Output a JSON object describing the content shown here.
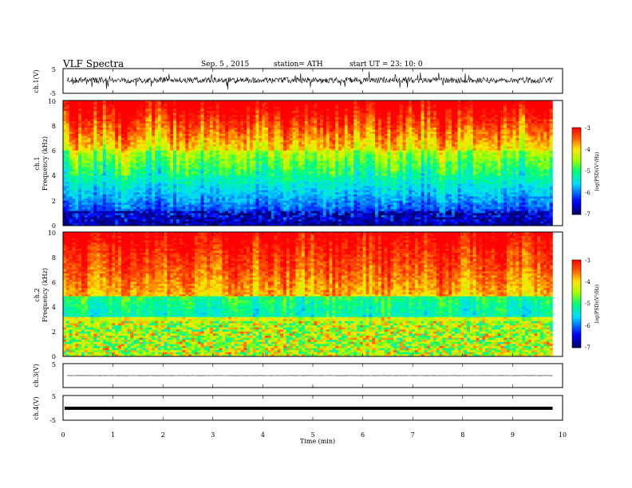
{
  "header": {
    "title": "VLF  Spectra",
    "date": "Sep. 5  , 2015",
    "station": "station= ATH",
    "start": "start  UT  =    23: 10: 0"
  },
  "chart_data": [
    {
      "type": "line",
      "panel": "ch1-waveform",
      "ylabel": "ch.1(V)",
      "ylim": [
        -5,
        5
      ],
      "y_ticks": [
        "5",
        "-5"
      ],
      "baseline": 0.3,
      "noise_amplitude": 1.2
    },
    {
      "type": "heatmap",
      "panel": "ch1-spectrogram",
      "ylabel_top": "ch.1",
      "ylabel": "Frequency (kHz)",
      "ylim": [
        0,
        10
      ],
      "y_ticks": [
        "0",
        "2",
        "4",
        "6",
        "8",
        "10"
      ],
      "colorbar_label": "log(PSD)(V²/Hz)",
      "colorbar_range": [
        -7,
        -3
      ],
      "colorbar_ticks": [
        "-3",
        "-4",
        "-5",
        "-6",
        "-7"
      ],
      "data_end_min": 9.8
    },
    {
      "type": "heatmap",
      "panel": "ch2-spectrogram",
      "ylabel_top": "ch.2",
      "ylabel": "Frequency (kHz)",
      "ylim": [
        0,
        10
      ],
      "y_ticks": [
        "0",
        "2",
        "4",
        "6",
        "8",
        "10"
      ],
      "colorbar_label": "log(PSD)(V²/Hz)",
      "colorbar_range": [
        -7,
        -3
      ],
      "colorbar_ticks": [
        "-3",
        "-4",
        "-5",
        "-6",
        "-7"
      ],
      "data_end_min": 9.8
    },
    {
      "type": "line",
      "panel": "ch3-waveform",
      "ylabel": "ch.3(V)",
      "ylim": [
        -5,
        5
      ],
      "y_ticks": [
        "5"
      ],
      "baseline": 0.0,
      "noise_amplitude": 0.05
    },
    {
      "type": "line",
      "panel": "ch4-waveform",
      "ylabel": "ch.4(V)",
      "ylim": [
        -5,
        5
      ],
      "y_ticks": [
        "5",
        "-5"
      ],
      "baseline": 0.0,
      "noise_amplitude": 0.0
    }
  ],
  "xaxis": {
    "label": "Time  (min)",
    "ticks": [
      "0",
      "1",
      "2",
      "3",
      "4",
      "5",
      "6",
      "7",
      "8",
      "9",
      "10"
    ],
    "xlim": [
      0,
      10
    ]
  }
}
